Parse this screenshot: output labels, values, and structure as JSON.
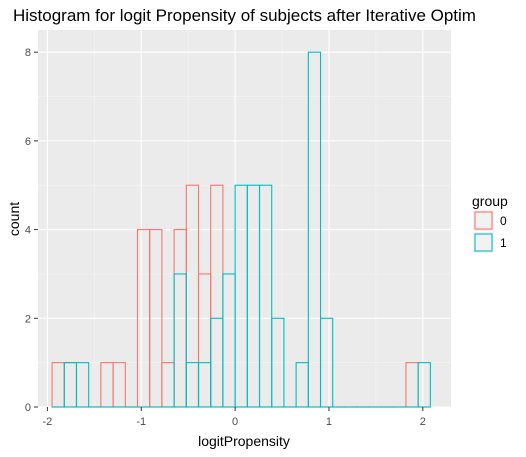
{
  "chart_data": {
    "type": "bar",
    "title": "Histogram for logit Propensity of subjects after Iterative Optim",
    "xlabel": "logitPropensity",
    "ylabel": "count",
    "xlim": [
      -2.1,
      2.3
    ],
    "ylim": [
      0,
      8.5
    ],
    "x_ticks": [
      -2,
      -1,
      0,
      1,
      2
    ],
    "y_ticks": [
      0,
      2,
      4,
      6,
      8
    ],
    "bin_width": 0.13,
    "bin_starts": [
      -1.95,
      -1.82,
      -1.69,
      -1.56,
      -1.43,
      -1.3,
      -1.17,
      -1.04,
      -0.91,
      -0.78,
      -0.65,
      -0.52,
      -0.39,
      -0.26,
      -0.13,
      0.0,
      0.13,
      0.26,
      0.39,
      0.52,
      0.65,
      0.78,
      0.91,
      1.04,
      1.17,
      1.3,
      1.43,
      1.56,
      1.69,
      1.82,
      1.95
    ],
    "grid": true,
    "legend_position": "right",
    "legend_title": "group",
    "series": [
      {
        "name": "0",
        "color": "#f8766d",
        "values": [
          1,
          1,
          0,
          0,
          1,
          1,
          0,
          4,
          4,
          1,
          4,
          5,
          3,
          5,
          0,
          0,
          0,
          0,
          0,
          0,
          0,
          0,
          0,
          0,
          0,
          0,
          0,
          0,
          0,
          1,
          0
        ]
      },
      {
        "name": "1",
        "color": "#00bfc4",
        "values": [
          0,
          1,
          1,
          0,
          0,
          0,
          0,
          0,
          0,
          0,
          3,
          1,
          1,
          2,
          3,
          5,
          5,
          5,
          2,
          0,
          1,
          8,
          2,
          0,
          0,
          0,
          0,
          0,
          0,
          0,
          1
        ]
      }
    ]
  }
}
